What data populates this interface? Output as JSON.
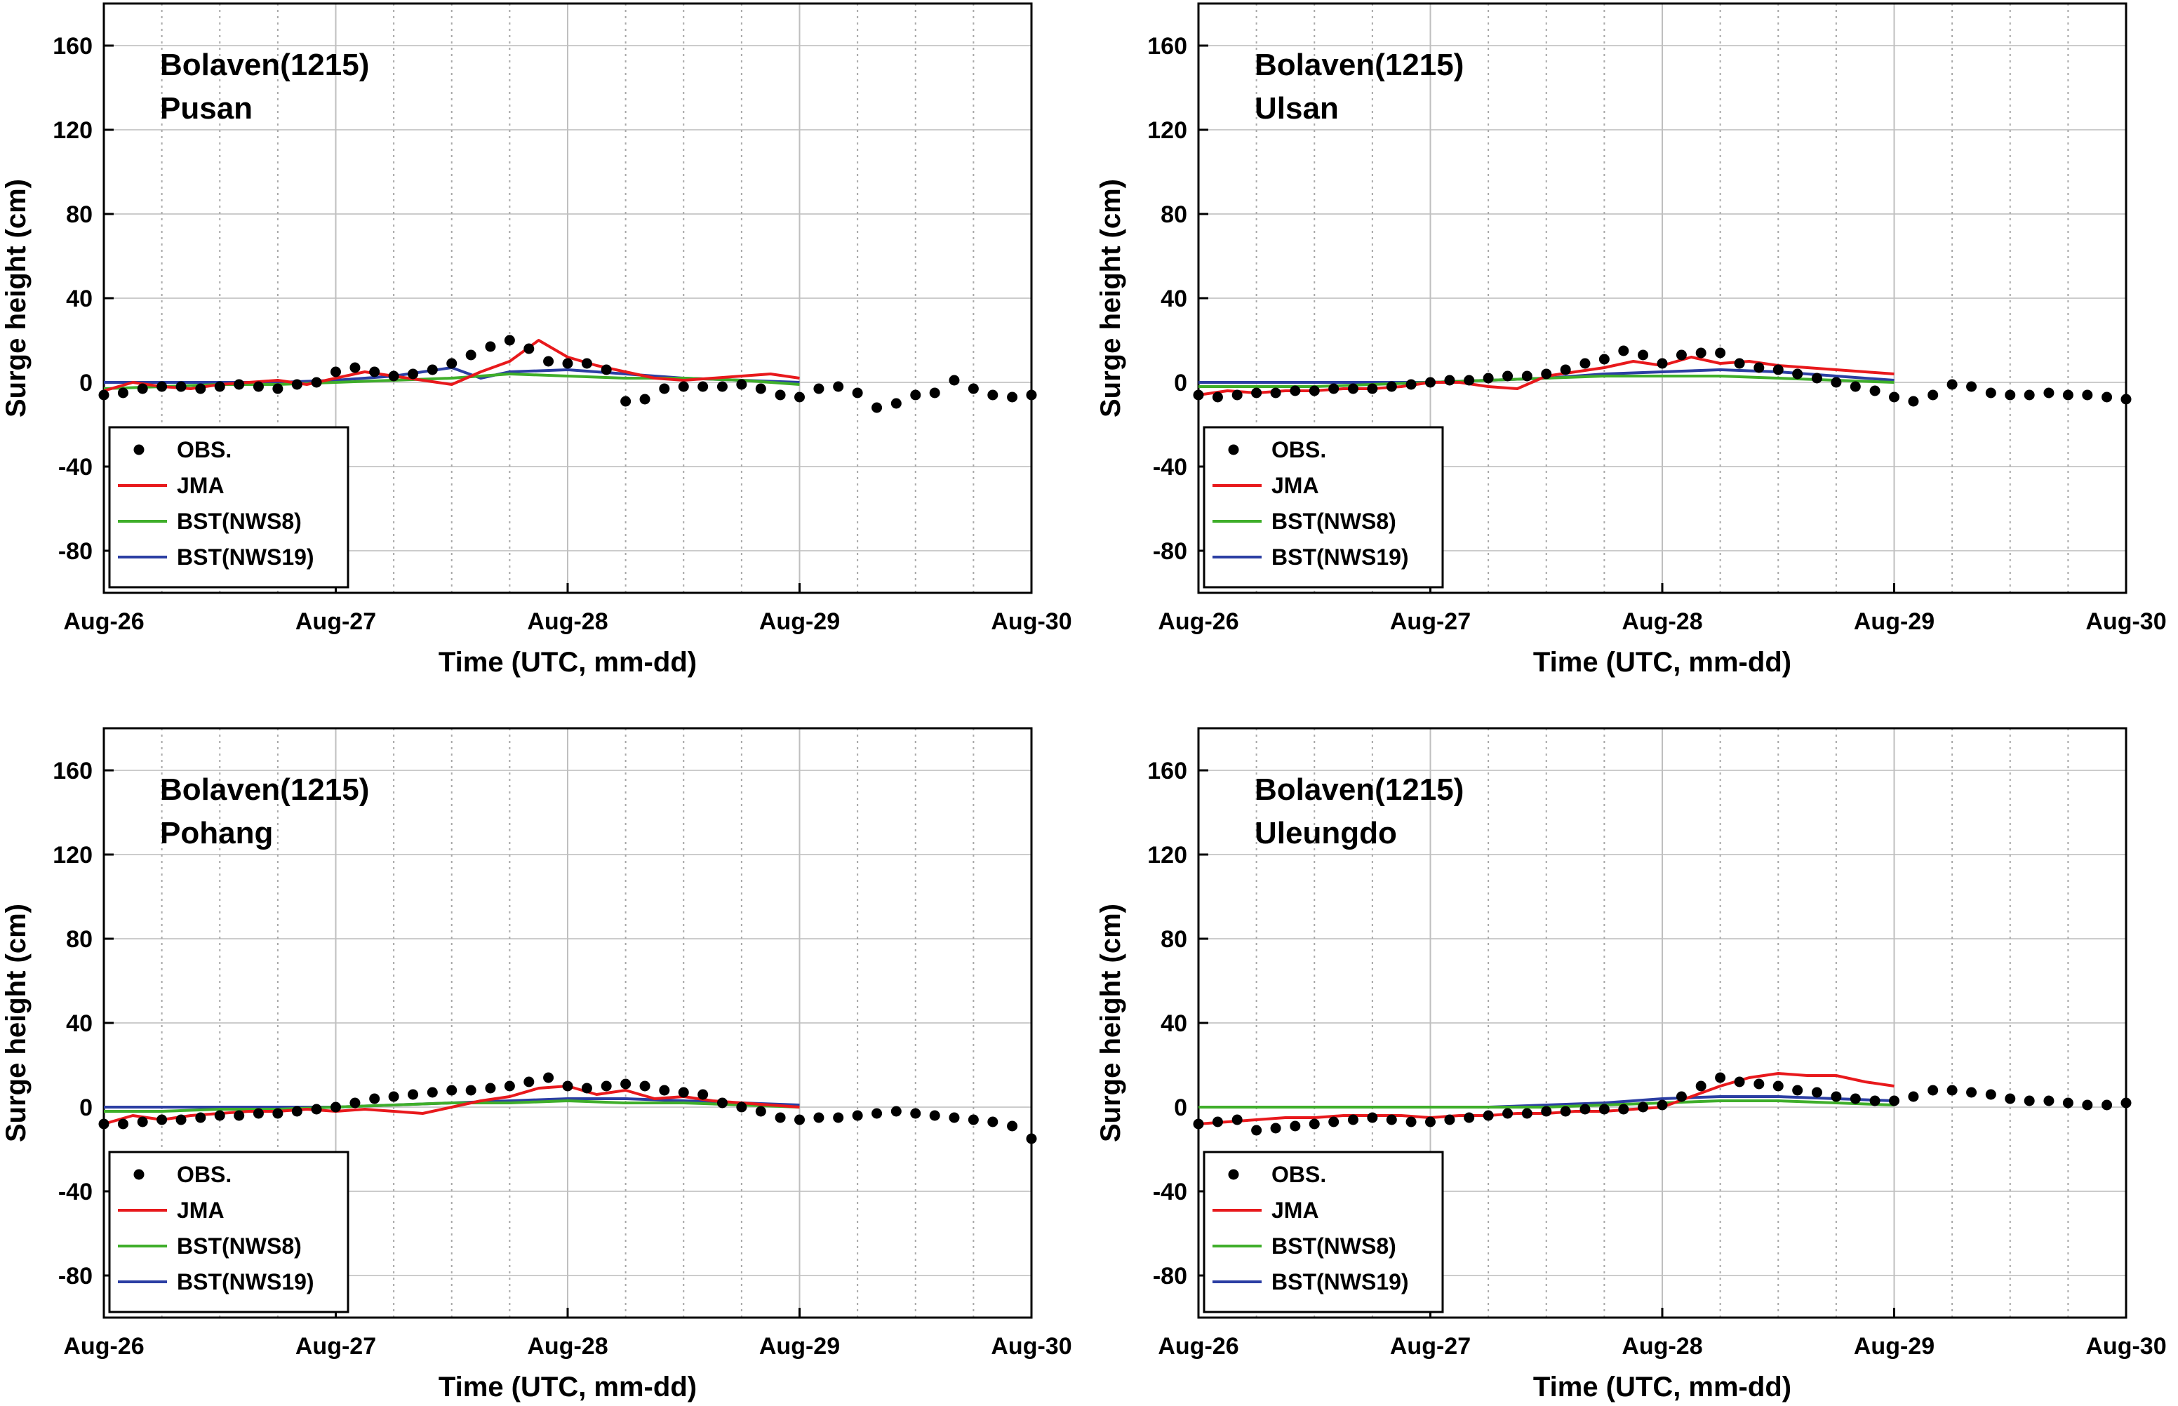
{
  "figure": {
    "xlabel": "Time (UTC, mm-dd)",
    "ylabel": "Surge height (cm)",
    "colors": {
      "obs": "#000000",
      "jma": "#e8191c",
      "nws8": "#3fae2a",
      "nws19": "#2b3ea3"
    }
  },
  "chart_data": [
    {
      "type": "line",
      "title": "Bolaven(1215)",
      "subtitle": "Pusan",
      "xlabel": "Time (UTC, mm-dd)",
      "ylabel": "Surge height (cm)",
      "xlim": [
        0,
        4
      ],
      "ylim": [
        -100,
        180
      ],
      "x_tick_labels": [
        "Aug-26",
        "Aug-27",
        "Aug-28",
        "Aug-29",
        "Aug-30"
      ],
      "y_ticks": [
        160,
        120,
        80,
        40,
        0,
        -40,
        -80
      ],
      "grid": true,
      "legend_position": "bottom-left",
      "series": [
        {
          "name": "OBS.",
          "style": "dots",
          "color": "#000000",
          "x": [
            0,
            0.083,
            0.167,
            0.25,
            0.333,
            0.417,
            0.5,
            0.583,
            0.667,
            0.75,
            0.833,
            0.917,
            1.0,
            1.083,
            1.167,
            1.25,
            1.333,
            1.417,
            1.5,
            1.583,
            1.667,
            1.75,
            1.833,
            1.917,
            2.0,
            2.083,
            2.167,
            2.25,
            2.333,
            2.417,
            2.5,
            2.583,
            2.667,
            2.75,
            2.833,
            2.917,
            3.0,
            3.083,
            3.167,
            3.25,
            3.333,
            3.417,
            3.5,
            3.583,
            3.667,
            3.75,
            3.833,
            3.917,
            4.0
          ],
          "y": [
            -6,
            -5,
            -3,
            -2,
            -2,
            -3,
            -2,
            -1,
            -2,
            -3,
            -1,
            0,
            5,
            7,
            5,
            3,
            4,
            6,
            9,
            13,
            17,
            20,
            16,
            10,
            9,
            9,
            6,
            -9,
            -8,
            -3,
            -2,
            -2,
            -2,
            -1,
            -3,
            -6,
            -7,
            -3,
            -2,
            -5,
            -12,
            -10,
            -6,
            -5,
            1,
            -3,
            -6,
            -7,
            -6
          ]
        },
        {
          "name": "JMA",
          "style": "line",
          "color": "#e8191c",
          "x": [
            0,
            0.125,
            0.25,
            0.375,
            0.5,
            0.625,
            0.75,
            0.875,
            1.0,
            1.125,
            1.25,
            1.375,
            1.5,
            1.625,
            1.75,
            1.875,
            2.0,
            2.125,
            2.25,
            2.375,
            2.5,
            2.625,
            2.75,
            2.875,
            3.0
          ],
          "y": [
            -4,
            0,
            -2,
            -3,
            -1,
            0,
            1,
            -1,
            2,
            5,
            3,
            1,
            -1,
            5,
            10,
            20,
            12,
            8,
            5,
            2,
            1,
            2,
            3,
            4,
            2
          ]
        },
        {
          "name": "BST(NWS8)",
          "style": "line",
          "color": "#3fae2a",
          "x": [
            0,
            0.25,
            0.5,
            0.75,
            1.0,
            1.25,
            1.5,
            1.75,
            2.0,
            2.25,
            2.5,
            2.75,
            3.0
          ],
          "y": [
            -3,
            -2,
            -1,
            -1,
            0,
            1,
            2,
            4,
            3,
            2,
            2,
            1,
            -1
          ]
        },
        {
          "name": "BST(NWS19)",
          "style": "line",
          "color": "#2b3ea3",
          "x": [
            0,
            0.25,
            0.5,
            0.75,
            1.0,
            1.25,
            1.5,
            1.625,
            1.75,
            2.0,
            2.25,
            2.5,
            2.75,
            3.0
          ],
          "y": [
            0,
            0,
            0,
            0,
            1,
            3,
            7,
            2,
            5,
            6,
            4,
            2,
            1,
            0
          ]
        }
      ]
    },
    {
      "type": "line",
      "title": "Bolaven(1215)",
      "subtitle": "Ulsan",
      "xlabel": "Time (UTC, mm-dd)",
      "ylabel": "Surge height (cm)",
      "xlim": [
        0,
        4
      ],
      "ylim": [
        -100,
        180
      ],
      "x_tick_labels": [
        "Aug-26",
        "Aug-27",
        "Aug-28",
        "Aug-29",
        "Aug-30"
      ],
      "y_ticks": [
        160,
        120,
        80,
        40,
        0,
        -40,
        -80
      ],
      "grid": true,
      "legend_position": "bottom-left",
      "series": [
        {
          "name": "OBS.",
          "style": "dots",
          "color": "#000000",
          "x": [
            0,
            0.083,
            0.167,
            0.25,
            0.333,
            0.417,
            0.5,
            0.583,
            0.667,
            0.75,
            0.833,
            0.917,
            1.0,
            1.083,
            1.167,
            1.25,
            1.333,
            1.417,
            1.5,
            1.583,
            1.667,
            1.75,
            1.833,
            1.917,
            2.0,
            2.083,
            2.167,
            2.25,
            2.333,
            2.417,
            2.5,
            2.583,
            2.667,
            2.75,
            2.833,
            2.917,
            3.0,
            3.083,
            3.167,
            3.25,
            3.333,
            3.417,
            3.5,
            3.583,
            3.667,
            3.75,
            3.833,
            3.917,
            4.0
          ],
          "y": [
            -6,
            -7,
            -6,
            -5,
            -5,
            -4,
            -4,
            -3,
            -3,
            -3,
            -2,
            -1,
            0,
            1,
            1,
            2,
            3,
            3,
            4,
            6,
            9,
            11,
            15,
            13,
            9,
            13,
            14,
            14,
            9,
            7,
            6,
            4,
            2,
            0,
            -2,
            -4,
            -7,
            -9,
            -6,
            -1,
            -2,
            -5,
            -6,
            -6,
            -5,
            -6,
            -6,
            -7,
            -8
          ]
        },
        {
          "name": "JMA",
          "style": "line",
          "color": "#e8191c",
          "x": [
            0,
            0.125,
            0.25,
            0.375,
            0.5,
            0.625,
            0.75,
            0.875,
            1.0,
            1.125,
            1.25,
            1.375,
            1.5,
            1.625,
            1.75,
            1.875,
            2.0,
            2.125,
            2.25,
            2.375,
            2.5,
            2.625,
            2.75,
            2.875,
            3.0
          ],
          "y": [
            -6,
            -4,
            -5,
            -4,
            -4,
            -3,
            -3,
            -2,
            0,
            0,
            -2,
            -3,
            3,
            5,
            7,
            10,
            8,
            12,
            9,
            10,
            8,
            7,
            6,
            5,
            4
          ]
        },
        {
          "name": "BST(NWS8)",
          "style": "line",
          "color": "#3fae2a",
          "x": [
            0,
            0.25,
            0.5,
            0.75,
            1.0,
            1.25,
            1.5,
            1.75,
            2.0,
            2.25,
            2.5,
            2.75,
            3.0
          ],
          "y": [
            -2,
            -2,
            -2,
            -1,
            0,
            1,
            2,
            3,
            3,
            3,
            2,
            1,
            0
          ]
        },
        {
          "name": "BST(NWS19)",
          "style": "line",
          "color": "#2b3ea3",
          "x": [
            0,
            0.25,
            0.5,
            0.75,
            1.0,
            1.25,
            1.5,
            1.75,
            2.0,
            2.25,
            2.5,
            2.75,
            3.0
          ],
          "y": [
            0,
            0,
            0,
            0,
            0,
            1,
            2,
            4,
            5,
            6,
            5,
            3,
            1
          ]
        }
      ]
    },
    {
      "type": "line",
      "title": "Bolaven(1215)",
      "subtitle": "Pohang",
      "xlabel": "Time (UTC, mm-dd)",
      "ylabel": "Surge height (cm)",
      "xlim": [
        0,
        4
      ],
      "ylim": [
        -100,
        180
      ],
      "x_tick_labels": [
        "Aug-26",
        "Aug-27",
        "Aug-28",
        "Aug-29",
        "Aug-30"
      ],
      "y_ticks": [
        160,
        120,
        80,
        40,
        0,
        -40,
        -80
      ],
      "grid": true,
      "legend_position": "bottom-left",
      "series": [
        {
          "name": "OBS.",
          "style": "dots",
          "color": "#000000",
          "x": [
            0,
            0.083,
            0.167,
            0.25,
            0.333,
            0.417,
            0.5,
            0.583,
            0.667,
            0.75,
            0.833,
            0.917,
            1.0,
            1.083,
            1.167,
            1.25,
            1.333,
            1.417,
            1.5,
            1.583,
            1.667,
            1.75,
            1.833,
            1.917,
            2.0,
            2.083,
            2.167,
            2.25,
            2.333,
            2.417,
            2.5,
            2.583,
            2.667,
            2.75,
            2.833,
            2.917,
            3.0,
            3.083,
            3.167,
            3.25,
            3.333,
            3.417,
            3.5,
            3.583,
            3.667,
            3.75,
            3.833,
            3.917,
            4.0
          ],
          "y": [
            -8,
            -8,
            -7,
            -6,
            -6,
            -5,
            -4,
            -4,
            -3,
            -3,
            -2,
            -1,
            0,
            2,
            4,
            5,
            6,
            7,
            8,
            8,
            9,
            10,
            12,
            14,
            10,
            9,
            10,
            11,
            10,
            8,
            7,
            6,
            2,
            0,
            -2,
            -5,
            -6,
            -5,
            -5,
            -4,
            -3,
            -2,
            -3,
            -4,
            -5,
            -6,
            -7,
            -9,
            -15
          ]
        },
        {
          "name": "JMA",
          "style": "line",
          "color": "#e8191c",
          "x": [
            0,
            0.125,
            0.25,
            0.375,
            0.5,
            0.625,
            0.75,
            0.875,
            1.0,
            1.125,
            1.25,
            1.375,
            1.5,
            1.625,
            1.75,
            1.875,
            2.0,
            2.125,
            2.25,
            2.375,
            2.5,
            2.625,
            2.75,
            2.875,
            3.0
          ],
          "y": [
            -8,
            -4,
            -6,
            -4,
            -3,
            -2,
            -2,
            -1,
            -2,
            -1,
            -2,
            -3,
            0,
            3,
            5,
            9,
            10,
            6,
            8,
            4,
            5,
            3,
            2,
            1,
            0
          ]
        },
        {
          "name": "BST(NWS8)",
          "style": "line",
          "color": "#3fae2a",
          "x": [
            0,
            0.25,
            0.5,
            0.75,
            1.0,
            1.25,
            1.5,
            1.75,
            2.0,
            2.25,
            2.5,
            2.75,
            3.0
          ],
          "y": [
            -2,
            -2,
            -1,
            -1,
            0,
            1,
            2,
            2,
            3,
            2,
            2,
            1,
            0
          ]
        },
        {
          "name": "BST(NWS19)",
          "style": "line",
          "color": "#2b3ea3",
          "x": [
            0,
            0.25,
            0.5,
            0.75,
            1.0,
            1.25,
            1.5,
            1.75,
            2.0,
            2.25,
            2.5,
            2.75,
            3.0
          ],
          "y": [
            0,
            0,
            0,
            0,
            0,
            1,
            2,
            3,
            4,
            4,
            3,
            2,
            1
          ]
        }
      ]
    },
    {
      "type": "line",
      "title": "Bolaven(1215)",
      "subtitle": "Uleungdo",
      "xlabel": "Time (UTC, mm-dd)",
      "ylabel": "Surge height (cm)",
      "xlim": [
        0,
        4
      ],
      "ylim": [
        -100,
        180
      ],
      "x_tick_labels": [
        "Aug-26",
        "Aug-27",
        "Aug-28",
        "Aug-29",
        "Aug-30"
      ],
      "y_ticks": [
        160,
        120,
        80,
        40,
        0,
        -40,
        -80
      ],
      "grid": true,
      "legend_position": "bottom-left",
      "series": [
        {
          "name": "OBS.",
          "style": "dots",
          "color": "#000000",
          "x": [
            0,
            0.083,
            0.167,
            0.25,
            0.333,
            0.417,
            0.5,
            0.583,
            0.667,
            0.75,
            0.833,
            0.917,
            1.0,
            1.083,
            1.167,
            1.25,
            1.333,
            1.417,
            1.5,
            1.583,
            1.667,
            1.75,
            1.833,
            1.917,
            2.0,
            2.083,
            2.167,
            2.25,
            2.333,
            2.417,
            2.5,
            2.583,
            2.667,
            2.75,
            2.833,
            2.917,
            3.0,
            3.083,
            3.167,
            3.25,
            3.333,
            3.417,
            3.5,
            3.583,
            3.667,
            3.75,
            3.833,
            3.917,
            4.0
          ],
          "y": [
            -8,
            -7,
            -6,
            -11,
            -10,
            -9,
            -8,
            -7,
            -6,
            -5,
            -6,
            -7,
            -7,
            -6,
            -5,
            -4,
            -3,
            -3,
            -2,
            -2,
            -1,
            -1,
            -1,
            0,
            1,
            5,
            10,
            14,
            12,
            11,
            10,
            8,
            7,
            5,
            4,
            3,
            3,
            5,
            8,
            8,
            7,
            6,
            4,
            3,
            3,
            2,
            1,
            1,
            2
          ]
        },
        {
          "name": "JMA",
          "style": "line",
          "color": "#e8191c",
          "x": [
            0,
            0.125,
            0.25,
            0.375,
            0.5,
            0.625,
            0.75,
            0.875,
            1.0,
            1.125,
            1.25,
            1.375,
            1.5,
            1.625,
            1.75,
            1.875,
            2.0,
            2.125,
            2.25,
            2.375,
            2.5,
            2.625,
            2.75,
            2.875,
            3.0
          ],
          "y": [
            -8,
            -7,
            -6,
            -5,
            -5,
            -4,
            -4,
            -4,
            -5,
            -4,
            -4,
            -3,
            -3,
            -2,
            -2,
            -1,
            0,
            5,
            10,
            14,
            16,
            15,
            15,
            12,
            10
          ]
        },
        {
          "name": "BST(NWS8)",
          "style": "line",
          "color": "#3fae2a",
          "x": [
            0,
            0.25,
            0.5,
            0.75,
            1.0,
            1.25,
            1.5,
            1.75,
            2.0,
            2.25,
            2.5,
            2.75,
            3.0
          ],
          "y": [
            0,
            0,
            0,
            0,
            0,
            0,
            0,
            1,
            2,
            3,
            3,
            2,
            1
          ]
        },
        {
          "name": "BST(NWS19)",
          "style": "line",
          "color": "#2b3ea3",
          "x": [
            0,
            0.25,
            0.5,
            0.75,
            1.0,
            1.25,
            1.5,
            1.75,
            2.0,
            2.25,
            2.5,
            2.75,
            3.0
          ],
          "y": [
            0,
            0,
            0,
            0,
            0,
            0,
            1,
            2,
            4,
            5,
            5,
            4,
            3
          ]
        }
      ]
    }
  ]
}
